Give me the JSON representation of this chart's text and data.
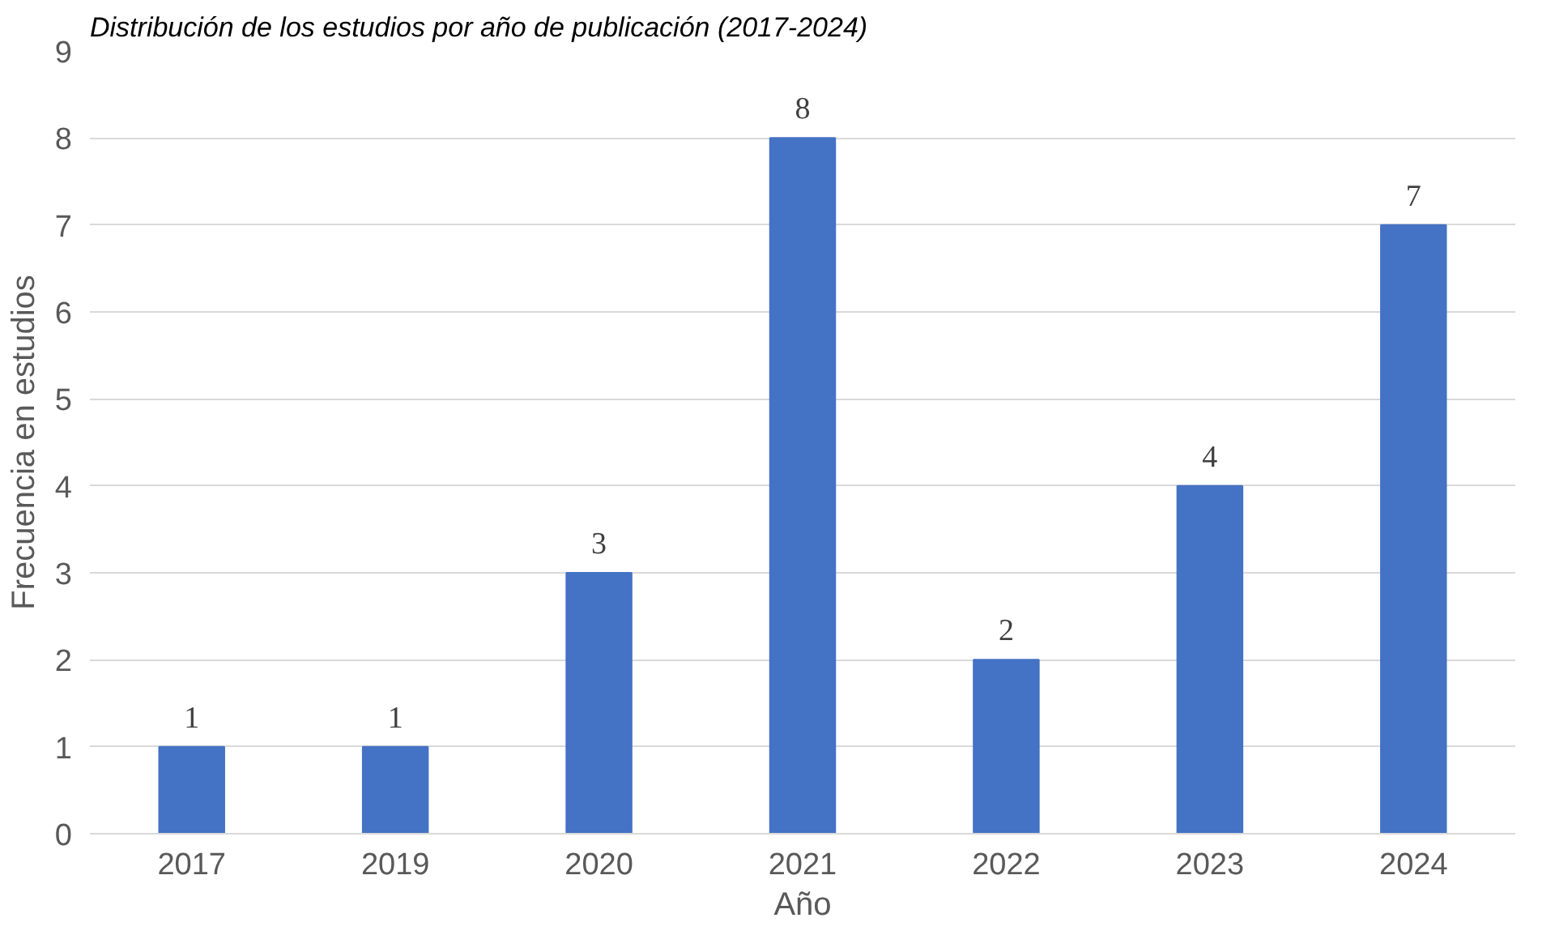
{
  "chart_data": {
    "type": "bar",
    "title": "Distribución de los estudios por año de publicación (2017-2024)",
    "xlabel": "Año",
    "ylabel": "Frecuencia en estudios",
    "categories": [
      "2017",
      "2019",
      "2020",
      "2021",
      "2022",
      "2023",
      "2024"
    ],
    "values": [
      1,
      1,
      3,
      8,
      2,
      4,
      7
    ],
    "color": "#4472c4",
    "ylim": [
      0,
      9
    ],
    "yticks": [
      0,
      1,
      2,
      3,
      4,
      5,
      6,
      7,
      8,
      9
    ],
    "grid": "y",
    "data_labels": true
  }
}
